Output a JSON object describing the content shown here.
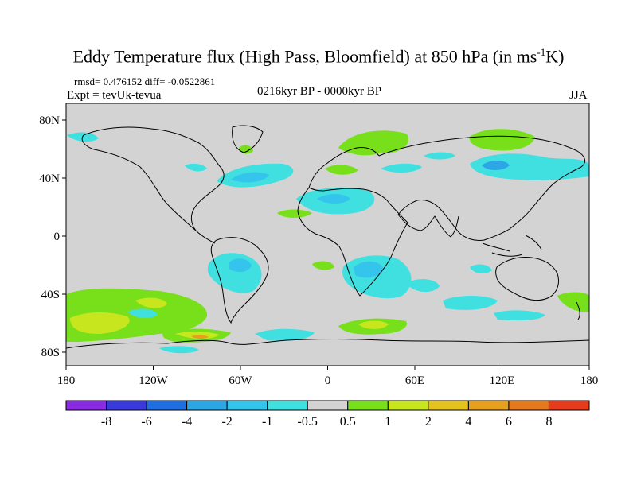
{
  "figure": {
    "title_main": "Eddy Temperature flux (High Pass, Bloomfield) at 850 hPa (in ms",
    "title_sup": "-1",
    "title_end": "K)",
    "stats": "rmsd= 0.476152 diff= -0.0522861",
    "experiment": "Expt = tevUk-tevua",
    "period": "0216kyr BP - 0000kyr BP",
    "season": "JJA"
  },
  "axes": {
    "x_ticks": [
      "180",
      "120W",
      "60W",
      "0",
      "60E",
      "120E",
      "180"
    ],
    "y_ticks": [
      "80N",
      "40N",
      "0",
      "40S",
      "80S"
    ]
  },
  "colorbar": {
    "levels": [
      "-8",
      "-6",
      "-4",
      "-2",
      "-1",
      "-0.5",
      "0.5",
      "1",
      "2",
      "4",
      "6",
      "8"
    ],
    "colors": [
      "#8a2be2",
      "#3a3adb",
      "#1f6fe0",
      "#2da6e6",
      "#35c5ec",
      "#40dfe0",
      "#d3d3d3",
      "#78e01a",
      "#c8e61e",
      "#e6c21e",
      "#e6a01e",
      "#e6781e",
      "#e63c1e"
    ]
  },
  "colors": {
    "ocean_land_background": "#d3d3d3",
    "coastline": "#000000"
  }
}
